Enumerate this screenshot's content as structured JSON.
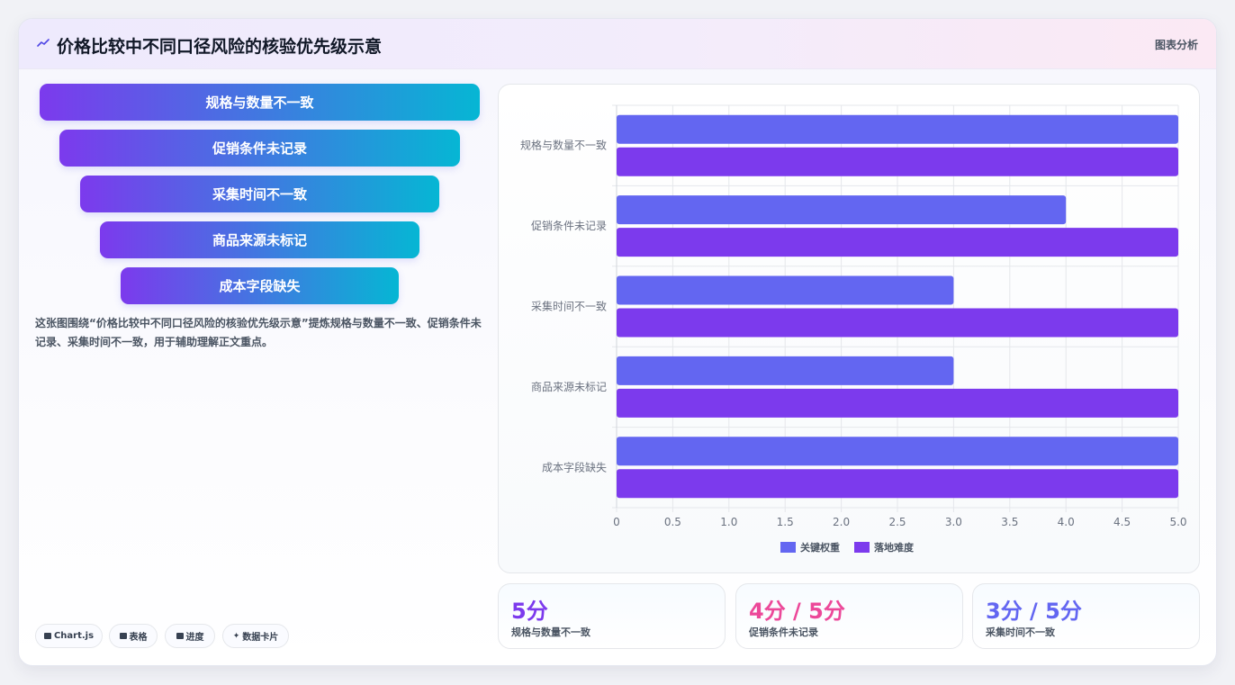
{
  "header": {
    "title": "价格比较中不同口径风险的核验优先级示意",
    "tag": "图表分析"
  },
  "funnel": [
    "规格与数量不一致",
    "促销条件未记录",
    "采集时间不一致",
    "商品来源未标记",
    "成本字段缺失"
  ],
  "description": "这张图围绕“价格比较中不同口径风险的核验优先级示意”提炼规格与数量不一致、促销条件未记录、采集时间不一致，用于辅助理解正文重点。",
  "pills": [
    "Chart.js",
    "表格",
    "进度",
    "数据卡片"
  ],
  "stats": [
    {
      "value": "5分",
      "label": "规格与数量不一致",
      "color": "#7c3aed"
    },
    {
      "value": "4分 / 5分",
      "label": "促销条件未记录",
      "color": "#ec4899"
    },
    {
      "value": "3分 / 5分",
      "label": "采集时间不一致",
      "color": "#6366f1"
    }
  ],
  "chart_data": {
    "type": "bar",
    "orientation": "horizontal",
    "categories": [
      "规格与数量不一致",
      "促销条件未记录",
      "采集时间不一致",
      "商品来源未标记",
      "成本字段缺失"
    ],
    "series": [
      {
        "name": "关键权重",
        "values": [
          5,
          4,
          3,
          3,
          5
        ],
        "color": "#6366f1"
      },
      {
        "name": "落地难度",
        "values": [
          5,
          5,
          5,
          5,
          5
        ],
        "color": "#7c3aed"
      }
    ],
    "xlim": [
      0,
      5
    ],
    "xticks": [
      "0",
      "0.5",
      "1.0",
      "1.5",
      "2.0",
      "2.5",
      "3.0",
      "3.5",
      "4.0",
      "4.5",
      "5.0"
    ],
    "grid": true,
    "legend": "bottom"
  }
}
